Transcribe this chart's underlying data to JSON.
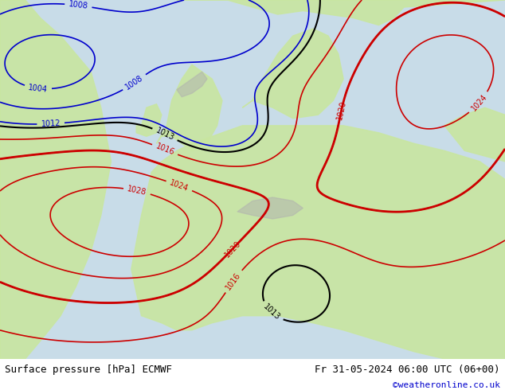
{
  "title_left": "Surface pressure [hPa] ECMWF",
  "title_right": "Fr 31-05-2024 06:00 UTC (06+00)",
  "watermark": "©weatheronline.co.uk",
  "bg_color": "#e8f5e0",
  "ocean_color": "#d0e8f0",
  "land_color": "#c8e6a0",
  "text_color_black": "#000000",
  "text_color_blue": "#0000cc",
  "text_color_red": "#cc0000",
  "contour_color_blue": "#0000cc",
  "contour_color_red": "#cc0000",
  "contour_color_black": "#000000",
  "footer_bg": "#f0f0f0",
  "footer_text_color": "#000000",
  "watermark_color": "#0000cc",
  "fig_width": 6.34,
  "fig_height": 4.9,
  "dpi": 100
}
